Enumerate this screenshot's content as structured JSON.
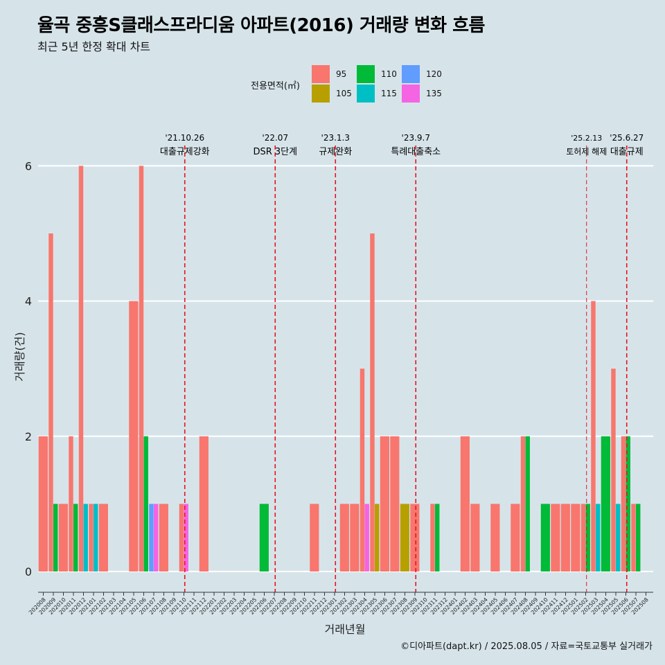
{
  "title": "율곡 중흥S클래스프라디움 아파트(2016) 거래량 변화 흐름",
  "subtitle": "최근 5년 한정 확대 차트",
  "caption": "©디아파트(dapt.kr) / 2025.08.05 / 자료=국토교통부 실거래가",
  "chart_data": {
    "type": "bar",
    "stacked": true,
    "xlabel": "거래년월",
    "ylabel": "거래량(건)",
    "ylim": [
      0,
      6
    ],
    "yticks": [
      0,
      2,
      4,
      6
    ],
    "grid": "horizontal",
    "legend": {
      "title": "전용면적(㎡)",
      "placement": "top",
      "entries": [
        {
          "name": "95",
          "color": "#F8766D"
        },
        {
          "name": "105",
          "color": "#B79F00"
        },
        {
          "name": "110",
          "color": "#00BA38"
        },
        {
          "name": "115",
          "color": "#00BFC4"
        },
        {
          "name": "120",
          "color": "#619CFF"
        },
        {
          "name": "135",
          "color": "#F564E3"
        }
      ]
    },
    "categories": [
      "202008",
      "202009",
      "202010",
      "202011",
      "202012",
      "202101",
      "202102",
      "202103",
      "202104",
      "202105",
      "202106",
      "202107",
      "202108",
      "202109",
      "202110",
      "202111",
      "202112",
      "202201",
      "202202",
      "202203",
      "202204",
      "202205",
      "202206",
      "202207",
      "202208",
      "202209",
      "202210",
      "202211",
      "202212",
      "202301",
      "202302",
      "202303",
      "202304",
      "202305",
      "202306",
      "202307",
      "202308",
      "202309",
      "202310",
      "202311",
      "202312",
      "202401",
      "202402",
      "202403",
      "202404",
      "202405",
      "202406",
      "202407",
      "202408",
      "202409",
      "202410",
      "202411",
      "202412",
      "202501",
      "202502",
      "202503",
      "202504",
      "202505",
      "202506",
      "202507",
      "202508"
    ],
    "bars": [
      {
        "month": "202008",
        "segments": [
          {
            "area": "95",
            "value": 2
          }
        ]
      },
      {
        "month": "202009",
        "segments": [
          {
            "area": "95",
            "value": 5
          },
          {
            "area": "110",
            "value": 1
          }
        ]
      },
      {
        "month": "202010",
        "segments": [
          {
            "area": "95",
            "value": 1
          }
        ]
      },
      {
        "month": "202011",
        "segments": [
          {
            "area": "95",
            "value": 2
          },
          {
            "area": "110",
            "value": 1
          }
        ]
      },
      {
        "month": "202012",
        "segments": [
          {
            "area": "95",
            "value": 6
          },
          {
            "area": "115",
            "value": 1
          }
        ]
      },
      {
        "month": "202101",
        "segments": [
          {
            "area": "95",
            "value": 1
          },
          {
            "area": "115",
            "value": 1
          }
        ]
      },
      {
        "month": "202102",
        "segments": [
          {
            "area": "95",
            "value": 1
          }
        ]
      },
      {
        "month": "202105",
        "segments": [
          {
            "area": "95",
            "value": 4
          }
        ]
      },
      {
        "month": "202106",
        "segments": [
          {
            "area": "95",
            "value": 6
          },
          {
            "area": "110",
            "value": 2
          }
        ]
      },
      {
        "month": "202107",
        "segments": [
          {
            "area": "120",
            "value": 1
          },
          {
            "area": "135",
            "value": 1
          }
        ]
      },
      {
        "month": "202108",
        "segments": [
          {
            "area": "95",
            "value": 1
          }
        ]
      },
      {
        "month": "202110",
        "segments": [
          {
            "area": "95",
            "value": 1
          },
          {
            "area": "135",
            "value": 1
          }
        ]
      },
      {
        "month": "202112",
        "segments": [
          {
            "area": "95",
            "value": 2
          }
        ]
      },
      {
        "month": "202206",
        "segments": [
          {
            "area": "110",
            "value": 1
          }
        ]
      },
      {
        "month": "202211",
        "segments": [
          {
            "area": "95",
            "value": 1
          }
        ]
      },
      {
        "month": "202302",
        "segments": [
          {
            "area": "95",
            "value": 1
          }
        ]
      },
      {
        "month": "202303",
        "segments": [
          {
            "area": "95",
            "value": 1
          }
        ]
      },
      {
        "month": "202304",
        "segments": [
          {
            "area": "95",
            "value": 3
          },
          {
            "area": "135",
            "value": 1
          }
        ]
      },
      {
        "month": "202305",
        "segments": [
          {
            "area": "95",
            "value": 5
          },
          {
            "area": "105",
            "value": 1
          }
        ]
      },
      {
        "month": "202306",
        "segments": [
          {
            "area": "95",
            "value": 2
          }
        ]
      },
      {
        "month": "202307",
        "segments": [
          {
            "area": "95",
            "value": 2
          }
        ]
      },
      {
        "month": "202308",
        "segments": [
          {
            "area": "105",
            "value": 1
          }
        ]
      },
      {
        "month": "202309",
        "segments": [
          {
            "area": "95",
            "value": 1
          }
        ]
      },
      {
        "month": "202311",
        "segments": [
          {
            "area": "95",
            "value": 1
          },
          {
            "area": "110",
            "value": 1
          }
        ]
      },
      {
        "month": "202402",
        "segments": [
          {
            "area": "95",
            "value": 2
          }
        ]
      },
      {
        "month": "202403",
        "segments": [
          {
            "area": "95",
            "value": 1
          }
        ]
      },
      {
        "month": "202405",
        "segments": [
          {
            "area": "95",
            "value": 1
          }
        ]
      },
      {
        "month": "202407",
        "segments": [
          {
            "area": "95",
            "value": 1
          }
        ]
      },
      {
        "month": "202408",
        "segments": [
          {
            "area": "95",
            "value": 2
          },
          {
            "area": "110",
            "value": 2
          }
        ]
      },
      {
        "month": "202410",
        "segments": [
          {
            "area": "110",
            "value": 1
          }
        ]
      },
      {
        "month": "202411",
        "segments": [
          {
            "area": "95",
            "value": 1
          }
        ]
      },
      {
        "month": "202412",
        "segments": [
          {
            "area": "95",
            "value": 1
          }
        ]
      },
      {
        "month": "202501",
        "segments": [
          {
            "area": "95",
            "value": 1
          }
        ]
      },
      {
        "month": "202502",
        "segments": [
          {
            "area": "95",
            "value": 1
          },
          {
            "area": "110",
            "value": 1
          }
        ]
      },
      {
        "month": "202503",
        "segments": [
          {
            "area": "95",
            "value": 4
          },
          {
            "area": "115",
            "value": 1
          }
        ]
      },
      {
        "month": "202504",
        "segments": [
          {
            "area": "110",
            "value": 2
          }
        ]
      },
      {
        "month": "202505",
        "segments": [
          {
            "area": "95",
            "value": 3
          },
          {
            "area": "115",
            "value": 1
          }
        ]
      },
      {
        "month": "202506",
        "segments": [
          {
            "area": "95",
            "value": 2
          },
          {
            "area": "110",
            "value": 2
          }
        ]
      },
      {
        "month": "202507",
        "segments": [
          {
            "area": "95",
            "value": 1
          },
          {
            "area": "110",
            "value": 1
          }
        ]
      }
    ],
    "events": [
      {
        "month": "202110",
        "date": "'21.10.26",
        "label": "대출규제강화"
      },
      {
        "month": "202207",
        "date": "'22.07",
        "label": "DSR 3단계"
      },
      {
        "month": "202301",
        "date": "'23.1.3",
        "label": "규제완화"
      },
      {
        "month": "202309",
        "date": "'23.9.7",
        "label": "특례대출축소"
      },
      {
        "month": "202502",
        "date": "'25.2.13",
        "label": "토허제 해제",
        "small": true
      },
      {
        "month": "202506",
        "date": "'25.6.27",
        "label": "대출규제"
      }
    ],
    "event_line_color": "#e8121c",
    "grid_color": "#ffffff",
    "background_color": "#d6e4ea"
  }
}
